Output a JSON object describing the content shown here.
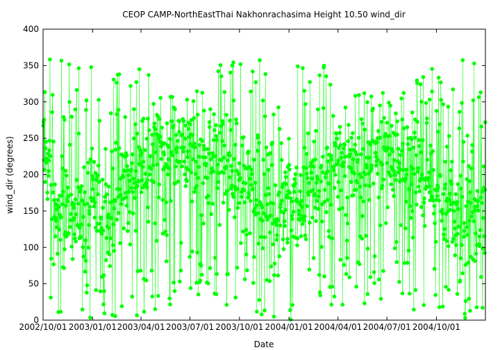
{
  "chart_data": {
    "type": "line",
    "title": "CEOP CAMP-NorthEastThai Nakhonrachasima Height 10.50 wind_dir",
    "xlabel": "Date",
    "ylabel": "wind_dir (degrees)",
    "ylim": [
      0,
      400
    ],
    "yticks": [
      0,
      50,
      100,
      150,
      200,
      250,
      300,
      350,
      400
    ],
    "xlim": [
      "2002/10/01",
      "2004/12/31"
    ],
    "xticks": [
      "2002/10/01",
      "2003/01/01",
      "2003/04/01",
      "2003/07/01",
      "2003/10/01",
      "2004/01/01",
      "2004/04/01",
      "2004/07/01",
      "2004/10/01"
    ],
    "grid": false,
    "legend": "none",
    "series": [
      {
        "color": "#00ff00",
        "marker": "circle",
        "x": [
          "2002/10/01",
          "2002/11/01",
          "2002/12/01",
          "2003/01/01",
          "2003/02/01",
          "2003/03/01",
          "2003/04/01",
          "2003/05/01",
          "2003/06/01",
          "2003/07/01",
          "2003/08/01",
          "2003/09/01",
          "2003/10/01",
          "2003/11/01",
          "2003/12/01",
          "2004/01/01",
          "2004/02/01",
          "2004/03/01",
          "2004/04/01",
          "2004/05/01",
          "2004/06/01",
          "2004/07/01",
          "2004/08/01",
          "2004/09/01",
          "2004/10/01",
          "2004/11/01",
          "2004/12/01"
        ],
        "y_mean": [
          220,
          150,
          140,
          150,
          160,
          180,
          210,
          225,
          230,
          235,
          230,
          215,
          180,
          150,
          145,
          150,
          165,
          190,
          215,
          225,
          230,
          235,
          225,
          205,
          175,
          150,
          145
        ],
        "y_min": [
          0,
          0,
          0,
          0,
          0,
          0,
          5,
          10,
          20,
          30,
          25,
          10,
          0,
          0,
          0,
          0,
          0,
          0,
          5,
          10,
          20,
          30,
          25,
          5,
          0,
          0,
          0
        ],
        "y_max": [
          360,
          360,
          360,
          360,
          360,
          360,
          355,
          340,
          320,
          310,
          330,
          355,
          360,
          360,
          360,
          360,
          360,
          360,
          355,
          340,
          320,
          310,
          330,
          355,
          360,
          360,
          360
        ]
      }
    ]
  }
}
